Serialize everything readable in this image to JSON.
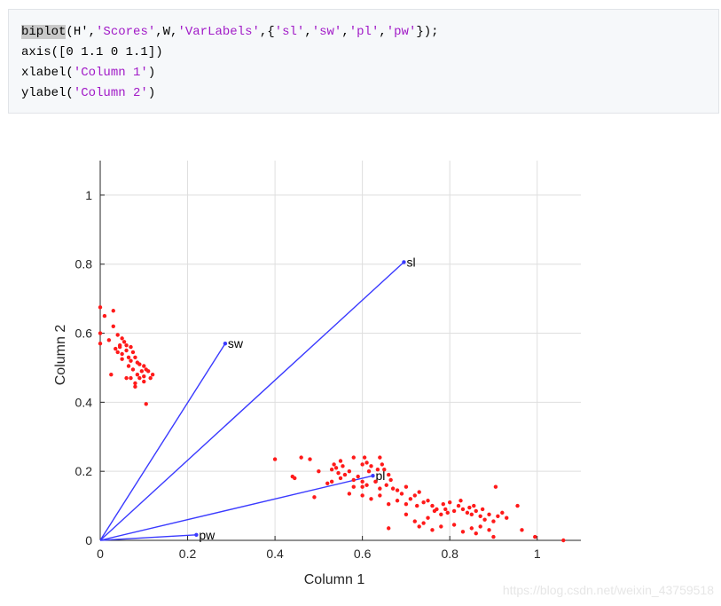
{
  "code": {
    "line1": {
      "fn": "biplot",
      "parts": [
        "(H',",
        "'Scores'",
        ",W,",
        "'VarLabels'",
        ",{",
        "'sl'",
        ",",
        "'sw'",
        ",",
        "'pl'",
        ",",
        "'pw'",
        "});"
      ]
    },
    "line2": "axis([0 1.1 0 1.1])",
    "line3": {
      "pre": "xlabel(",
      "str": "'Column 1'",
      "post": ")"
    },
    "line4": {
      "pre": "ylabel(",
      "str": "'Column 2'",
      "post": ")"
    }
  },
  "chart_data": {
    "type": "scatter",
    "xlabel": "Column 1",
    "ylabel": "Column 2",
    "xlim": [
      0,
      1.1
    ],
    "ylim": [
      0,
      1.1
    ],
    "grid": true,
    "xticks": [
      "0",
      "0.2",
      "0.4",
      "0.6",
      "0.8",
      "1"
    ],
    "yticks": [
      "0",
      "0.2",
      "0.4",
      "0.6",
      "0.8",
      "1"
    ],
    "vectors": [
      {
        "label": "sl",
        "x": 0.695,
        "y": 0.806
      },
      {
        "label": "sw",
        "x": 0.286,
        "y": 0.57
      },
      {
        "label": "pl",
        "x": 0.624,
        "y": 0.187
      },
      {
        "label": "pw",
        "x": 0.22,
        "y": 0.016
      }
    ],
    "scores": [
      [
        0.0,
        0.675
      ],
      [
        0.01,
        0.65
      ],
      [
        0.03,
        0.665
      ],
      [
        0.0,
        0.6
      ],
      [
        0.03,
        0.62
      ],
      [
        0.0,
        0.57
      ],
      [
        0.02,
        0.58
      ],
      [
        0.04,
        0.595
      ],
      [
        0.05,
        0.585
      ],
      [
        0.055,
        0.575
      ],
      [
        0.035,
        0.555
      ],
      [
        0.045,
        0.56
      ],
      [
        0.06,
        0.565
      ],
      [
        0.07,
        0.56
      ],
      [
        0.04,
        0.545
      ],
      [
        0.05,
        0.54
      ],
      [
        0.06,
        0.55
      ],
      [
        0.065,
        0.53
      ],
      [
        0.075,
        0.545
      ],
      [
        0.05,
        0.525
      ],
      [
        0.07,
        0.52
      ],
      [
        0.08,
        0.53
      ],
      [
        0.085,
        0.515
      ],
      [
        0.065,
        0.505
      ],
      [
        0.09,
        0.51
      ],
      [
        0.1,
        0.505
      ],
      [
        0.095,
        0.49
      ],
      [
        0.075,
        0.495
      ],
      [
        0.085,
        0.48
      ],
      [
        0.105,
        0.495
      ],
      [
        0.11,
        0.49
      ],
      [
        0.07,
        0.47
      ],
      [
        0.09,
        0.47
      ],
      [
        0.1,
        0.475
      ],
      [
        0.12,
        0.48
      ],
      [
        0.115,
        0.47
      ],
      [
        0.08,
        0.455
      ],
      [
        0.1,
        0.46
      ],
      [
        0.025,
        0.48
      ],
      [
        0.06,
        0.47
      ],
      [
        0.08,
        0.445
      ],
      [
        0.105,
        0.395
      ],
      [
        0.045,
        0.565
      ],
      [
        0.4,
        0.235
      ],
      [
        0.46,
        0.24
      ],
      [
        0.48,
        0.235
      ],
      [
        0.44,
        0.185
      ],
      [
        0.445,
        0.18
      ],
      [
        0.5,
        0.2
      ],
      [
        0.53,
        0.205
      ],
      [
        0.535,
        0.22
      ],
      [
        0.545,
        0.195
      ],
      [
        0.55,
        0.18
      ],
      [
        0.53,
        0.17
      ],
      [
        0.54,
        0.21
      ],
      [
        0.555,
        0.215
      ],
      [
        0.56,
        0.19
      ],
      [
        0.57,
        0.2
      ],
      [
        0.58,
        0.175
      ],
      [
        0.59,
        0.185
      ],
      [
        0.6,
        0.22
      ],
      [
        0.605,
        0.24
      ],
      [
        0.61,
        0.225
      ],
      [
        0.615,
        0.2
      ],
      [
        0.62,
        0.215
      ],
      [
        0.635,
        0.205
      ],
      [
        0.64,
        0.24
      ],
      [
        0.645,
        0.22
      ],
      [
        0.65,
        0.205
      ],
      [
        0.66,
        0.19
      ],
      [
        0.63,
        0.17
      ],
      [
        0.61,
        0.16
      ],
      [
        0.6,
        0.155
      ],
      [
        0.58,
        0.155
      ],
      [
        0.52,
        0.165
      ],
      [
        0.49,
        0.125
      ],
      [
        0.57,
        0.135
      ],
      [
        0.6,
        0.13
      ],
      [
        0.62,
        0.12
      ],
      [
        0.64,
        0.15
      ],
      [
        0.655,
        0.16
      ],
      [
        0.665,
        0.175
      ],
      [
        0.67,
        0.15
      ],
      [
        0.68,
        0.145
      ],
      [
        0.69,
        0.135
      ],
      [
        0.7,
        0.155
      ],
      [
        0.71,
        0.12
      ],
      [
        0.72,
        0.13
      ],
      [
        0.73,
        0.14
      ],
      [
        0.68,
        0.115
      ],
      [
        0.7,
        0.105
      ],
      [
        0.725,
        0.1
      ],
      [
        0.74,
        0.11
      ],
      [
        0.75,
        0.115
      ],
      [
        0.76,
        0.1
      ],
      [
        0.765,
        0.085
      ],
      [
        0.77,
        0.09
      ],
      [
        0.78,
        0.075
      ],
      [
        0.785,
        0.105
      ],
      [
        0.79,
        0.09
      ],
      [
        0.795,
        0.08
      ],
      [
        0.8,
        0.11
      ],
      [
        0.81,
        0.085
      ],
      [
        0.82,
        0.1
      ],
      [
        0.825,
        0.115
      ],
      [
        0.83,
        0.09
      ],
      [
        0.84,
        0.08
      ],
      [
        0.845,
        0.095
      ],
      [
        0.85,
        0.075
      ],
      [
        0.855,
        0.1
      ],
      [
        0.86,
        0.085
      ],
      [
        0.87,
        0.07
      ],
      [
        0.875,
        0.09
      ],
      [
        0.88,
        0.06
      ],
      [
        0.89,
        0.075
      ],
      [
        0.9,
        0.055
      ],
      [
        0.91,
        0.07
      ],
      [
        0.92,
        0.08
      ],
      [
        0.93,
        0.065
      ],
      [
        0.905,
        0.155
      ],
      [
        0.955,
        0.1
      ],
      [
        0.965,
        0.03
      ],
      [
        0.81,
        0.045
      ],
      [
        0.85,
        0.035
      ],
      [
        0.87,
        0.04
      ],
      [
        0.89,
        0.03
      ],
      [
        0.76,
        0.03
      ],
      [
        0.74,
        0.05
      ],
      [
        0.72,
        0.055
      ],
      [
        0.66,
        0.035
      ],
      [
        0.66,
        0.105
      ],
      [
        0.7,
        0.075
      ],
      [
        0.75,
        0.065
      ],
      [
        0.78,
        0.04
      ],
      [
        0.83,
        0.025
      ],
      [
        0.86,
        0.02
      ],
      [
        0.9,
        0.01
      ],
      [
        0.995,
        0.01
      ],
      [
        1.06,
        0.0
      ],
      [
        0.73,
        0.04
      ],
      [
        0.64,
        0.13
      ],
      [
        0.55,
        0.23
      ],
      [
        0.58,
        0.24
      ],
      [
        0.6,
        0.17
      ]
    ],
    "colors": {
      "vector": "#3a3aff",
      "score": "#ff1a1a",
      "grid": "#dedede",
      "axis": "#262626"
    }
  },
  "watermark": "https://blog.csdn.net/weixin_43759518"
}
